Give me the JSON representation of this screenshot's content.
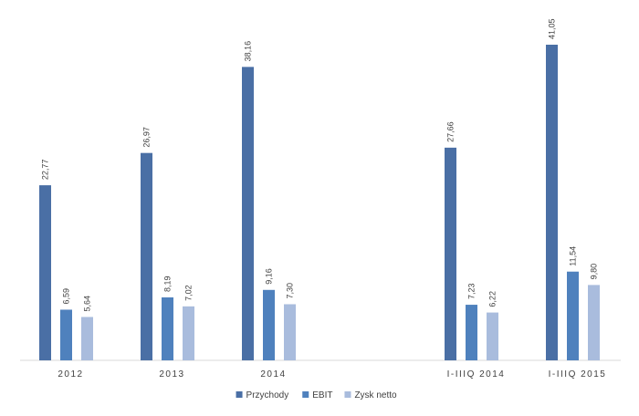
{
  "chart_data": {
    "type": "bar",
    "categories": [
      "2012",
      "2013",
      "2014",
      "",
      "I-IIIQ 2014",
      "I-IIIQ 2015"
    ],
    "series": [
      {
        "name": "Przychody",
        "color": "#4A6FA5",
        "values": [
          22.77,
          26.97,
          38.16,
          null,
          27.66,
          41.05
        ],
        "labels": [
          "22,77",
          "26,97",
          "38,16",
          "",
          "27,66",
          "41,05"
        ]
      },
      {
        "name": "EBIT",
        "color": "#4F81BD",
        "values": [
          6.59,
          8.19,
          9.16,
          null,
          7.23,
          11.54
        ],
        "labels": [
          "6,59",
          "8,19",
          "9,16",
          "",
          "7,23",
          "11,54"
        ]
      },
      {
        "name": "Zysk netto",
        "color": "#A9BCDD",
        "values": [
          5.64,
          7.02,
          7.3,
          null,
          6.22,
          9.8
        ],
        "labels": [
          "5,64",
          "7,02",
          "7,30",
          "",
          "6,22",
          "9,80"
        ]
      }
    ],
    "ylim": [
      0,
      41.05
    ],
    "grid": false,
    "legend_position": "bottom-center",
    "xlabel": "",
    "ylabel": "",
    "title": ""
  }
}
